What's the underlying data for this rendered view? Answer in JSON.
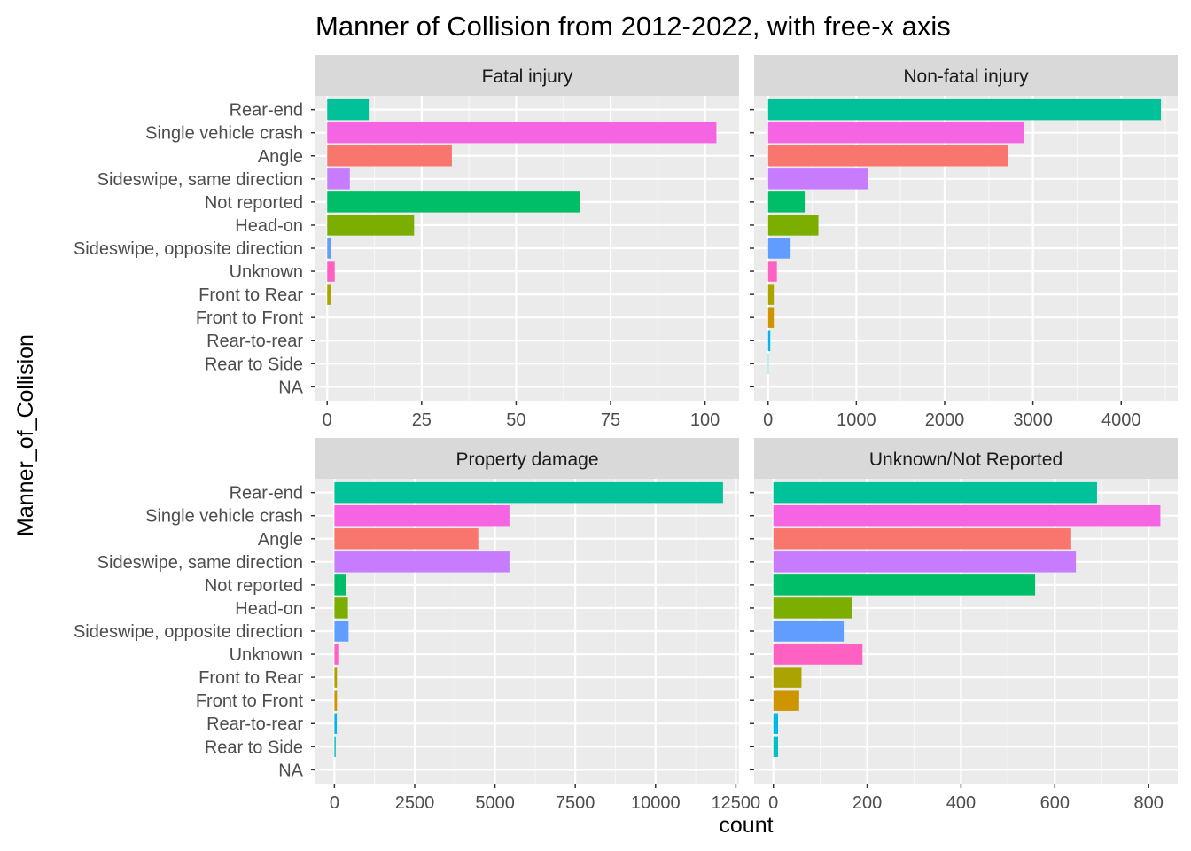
{
  "chart_data": {
    "type": "bar",
    "orientation": "horizontal",
    "title": "Manner of Collision from 2012-2022, with free-x axis",
    "xlabel": "count",
    "ylabel": "Manner_of_Collision",
    "grid": true,
    "legend": "none",
    "categories": [
      "NA",
      "Rear to Side",
      "Rear-to-rear",
      "Front to Front",
      "Front to Rear",
      "Unknown",
      "Sideswipe, opposite direction",
      "Head-on",
      "Not reported",
      "Sideswipe, same direction",
      "Angle",
      "Single vehicle crash",
      "Rear-end"
    ],
    "colors": [
      "#00A9FF",
      "#00BFC4",
      "#00B8E7",
      "#CD9600",
      "#ABA300",
      "#FF61C3",
      "#619CFF",
      "#7CAE00",
      "#00BE67",
      "#C77CFF",
      "#F8766D",
      "#F564E3",
      "#00C19A"
    ],
    "panels": [
      {
        "name": "Fatal injury",
        "xlim": [
          -3.1,
          109
        ],
        "xticks": [
          0,
          25,
          50,
          75,
          100
        ],
        "values": [
          0,
          0,
          0,
          0,
          1,
          2,
          1,
          23,
          67,
          6,
          33,
          103,
          11
        ]
      },
      {
        "name": "Non-fatal injury",
        "xlim": [
          -158,
          4640
        ],
        "xticks": [
          0,
          1000,
          2000,
          3000,
          4000
        ],
        "values": [
          0,
          5,
          25,
          65,
          65,
          100,
          255,
          570,
          415,
          1130,
          2720,
          2900,
          4450
        ]
      },
      {
        "name": "Property damage",
        "xlim": [
          -590,
          12600
        ],
        "xticks": [
          0,
          2500,
          5000,
          7500,
          10000,
          12500
        ],
        "values": [
          0,
          40,
          75,
          80,
          80,
          120,
          440,
          420,
          370,
          5450,
          4480,
          5450,
          12100
        ]
      },
      {
        "name": "Unknown/Not Reported",
        "xlim": [
          -41,
          862
        ],
        "xticks": [
          0,
          200,
          400,
          600,
          800
        ],
        "values": [
          0,
          10,
          10,
          55,
          60,
          190,
          150,
          168,
          558,
          645,
          635,
          825,
          690
        ]
      }
    ]
  }
}
